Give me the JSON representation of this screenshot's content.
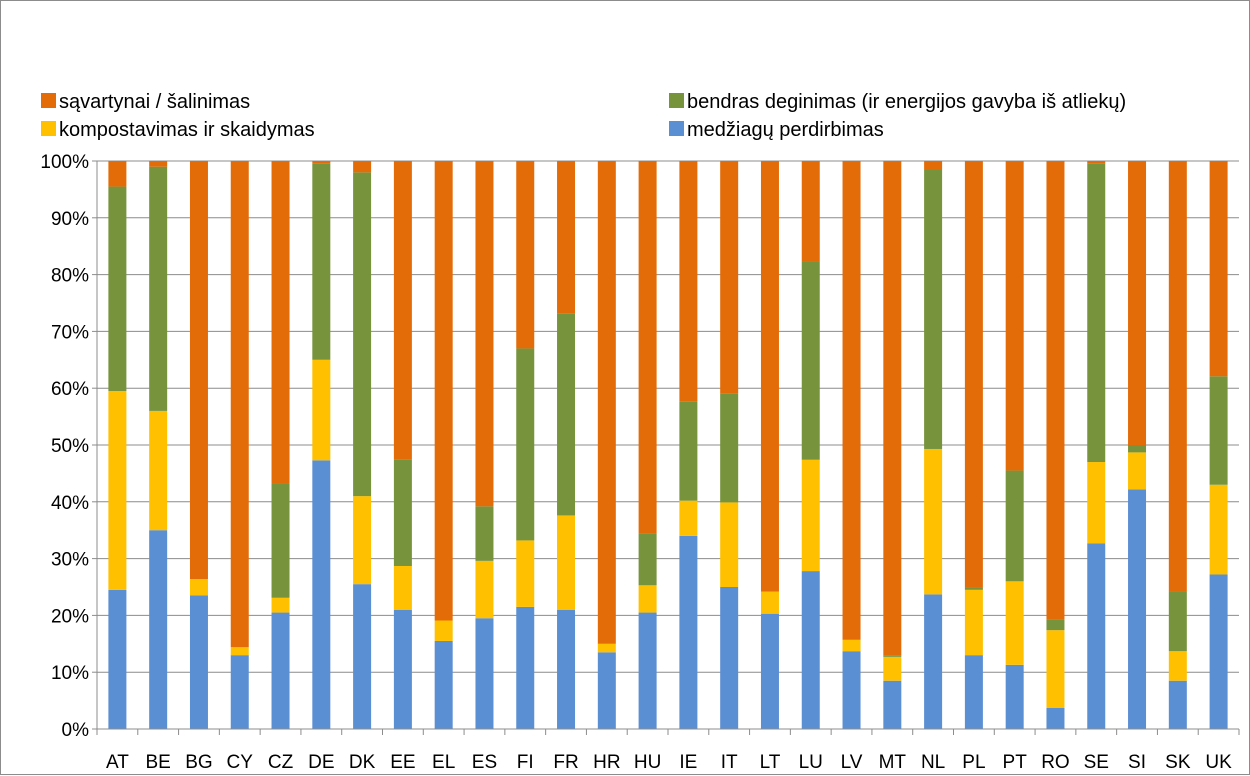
{
  "chart_data": {
    "type": "bar",
    "stacked": true,
    "normalized": true,
    "categories": [
      "AT",
      "BE",
      "BG",
      "CY",
      "CZ",
      "DE",
      "DK",
      "EE",
      "EL",
      "ES",
      "FI",
      "FR",
      "HR",
      "HU",
      "IE",
      "IT",
      "LT",
      "LU",
      "LV",
      "MT",
      "NL",
      "PL",
      "PT",
      "RO",
      "SE",
      "SI",
      "SK",
      "UK"
    ],
    "series": [
      {
        "name": "medžiagų perdirbimas",
        "color": "#5B8FD4",
        "values": [
          24.5,
          35,
          23.5,
          13,
          20.5,
          47.3,
          25.5,
          21,
          15.5,
          19.5,
          21.5,
          21,
          13.5,
          20.5,
          34,
          25,
          20.3,
          27.8,
          13.7,
          8.5,
          23.7,
          13,
          11.3,
          3.7,
          32.7,
          42.2,
          8.5,
          27.2
        ]
      },
      {
        "name": "kompostavimas ir skaidymas",
        "color": "#FFC000",
        "values": [
          35,
          21,
          2.9,
          1.4,
          2.6,
          17.7,
          15.5,
          7.7,
          3.6,
          10.1,
          11.7,
          16.6,
          1.5,
          4.8,
          6.2,
          14.9,
          3.9,
          19.6,
          2,
          4.2,
          25.6,
          11.5,
          14.7,
          13.7,
          14.3,
          6.5,
          5.2,
          15.8
        ]
      },
      {
        "name": "bendras deginimas (ir energijos gavyba iš atliekų)",
        "color": "#77933C",
        "values": [
          36,
          43,
          0,
          0,
          20.2,
          34.5,
          57,
          18.8,
          0,
          9.6,
          33.8,
          35.6,
          0,
          9.1,
          17.5,
          19.2,
          0,
          34.9,
          0,
          0.3,
          49.2,
          0.4,
          19.5,
          1.9,
          52.5,
          1.3,
          10.5,
          19.1
        ]
      },
      {
        "name": "sąvartynai / šalinimas",
        "color": "#E36C09",
        "values": [
          4.5,
          1,
          73.6,
          85.6,
          56.7,
          0.5,
          2,
          52.5,
          80.9,
          60.8,
          33,
          26.8,
          85,
          65.6,
          42.3,
          40.9,
          75.8,
          17.7,
          84.3,
          87,
          1.5,
          75.1,
          54.5,
          80.7,
          0.5,
          50,
          75.8,
          37.9
        ]
      }
    ],
    "yticks": [
      "0%",
      "10%",
      "20%",
      "30%",
      "40%",
      "50%",
      "60%",
      "70%",
      "80%",
      "90%",
      "100%"
    ],
    "ylim": [
      0,
      100
    ],
    "legend": {
      "order": [
        "sąvartynai / šalinimas",
        "bendras deginimas (ir energijos gavyba iš atliekų)",
        "kompostavimas ir skaidymas",
        "medžiagų perdirbimas"
      ],
      "position": "top"
    },
    "title": "",
    "xlabel": "",
    "ylabel": ""
  }
}
